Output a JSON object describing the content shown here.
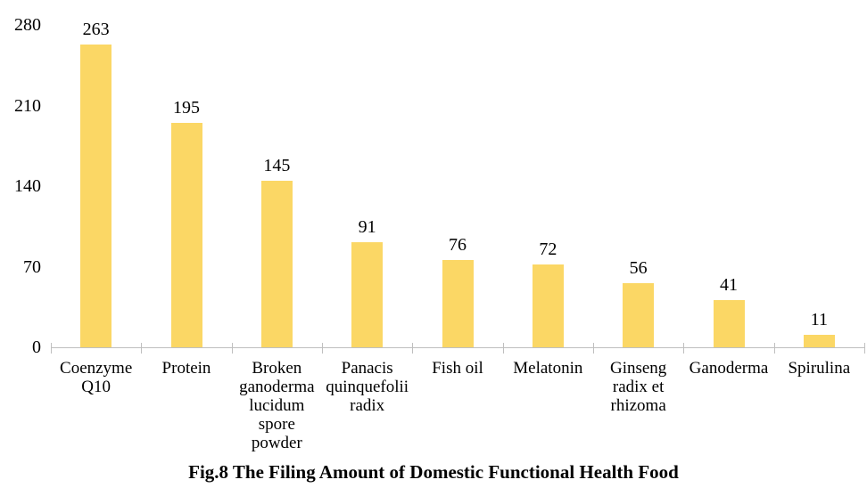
{
  "chart_data": {
    "type": "bar",
    "title": "Fig.8 The Filing Amount of Domestic Functional Health Food",
    "categories": [
      "Coenzyme Q10",
      "Protein",
      "Broken ganoderma lucidum spore powder",
      "Panacis quinquefolii radix",
      "Fish oil",
      "Melatonin",
      "Ginseng radix et rhizoma",
      "Ganoderma",
      "Spirulina"
    ],
    "category_label_lines": [
      [
        "Coenzyme",
        "Q10"
      ],
      [
        "Protein"
      ],
      [
        "Broken",
        "ganoderma",
        "lucidum",
        "spore",
        "powder"
      ],
      [
        "Panacis",
        "quinquefolii",
        "radix"
      ],
      [
        "Fish oil"
      ],
      [
        "Melatonin"
      ],
      [
        "Ginseng",
        "radix et",
        "rhizoma"
      ],
      [
        "Ganoderma"
      ],
      [
        "Spirulina"
      ]
    ],
    "values": [
      263,
      195,
      145,
      91,
      76,
      72,
      56,
      41,
      11
    ],
    "data_labels": [
      "263",
      "195",
      "145",
      "91",
      "76",
      "72",
      "56",
      "41",
      "11"
    ],
    "yticks": [
      "0",
      "70",
      "140",
      "210",
      "280"
    ],
    "ytick_values": [
      0,
      70,
      140,
      210,
      280
    ],
    "ylim": [
      0,
      280
    ],
    "xlabel": "",
    "ylabel": "",
    "grid": false,
    "legend": "none",
    "bar_color": "#FBD765",
    "axis_color": "#BFBFBF",
    "text_color": "#000000"
  }
}
